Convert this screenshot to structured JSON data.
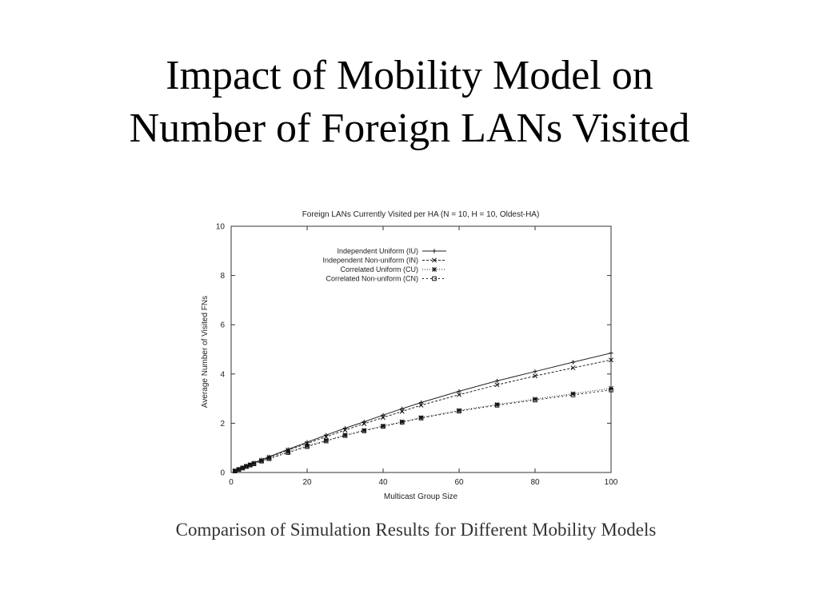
{
  "slide": {
    "title_line1": "Impact of Mobility Model on",
    "title_line2": "Number of Foreign LANs Visited",
    "caption": "Comparison of Simulation Results for Different Mobility Models"
  },
  "chart_data": {
    "type": "line",
    "title": "Foreign LANs Currently Visited per HA (N = 10, H = 10, Oldest-HA)",
    "xlabel": "Multicast Group Size",
    "ylabel": "Average Number of Visited FNs",
    "xlim": [
      0,
      100
    ],
    "ylim": [
      0,
      10
    ],
    "xticks": [
      0,
      20,
      40,
      60,
      80,
      100
    ],
    "yticks": [
      0,
      2,
      4,
      6,
      8,
      10
    ],
    "grid": false,
    "legend_position": "top-center",
    "x": [
      1,
      2,
      3,
      4,
      5,
      6,
      8,
      10,
      15,
      20,
      25,
      30,
      35,
      40,
      45,
      50,
      60,
      70,
      80,
      90,
      100
    ],
    "series": [
      {
        "name": "Independent Uniform (IU)",
        "marker": "+",
        "values": [
          0.07,
          0.14,
          0.2,
          0.27,
          0.33,
          0.39,
          0.52,
          0.64,
          0.94,
          1.23,
          1.52,
          1.8,
          2.06,
          2.33,
          2.59,
          2.84,
          3.3,
          3.72,
          4.1,
          4.48,
          4.85
        ]
      },
      {
        "name": "Independent Non-uniform (IN)",
        "marker": "x",
        "values": [
          0.07,
          0.13,
          0.19,
          0.26,
          0.32,
          0.38,
          0.5,
          0.62,
          0.91,
          1.18,
          1.45,
          1.72,
          1.98,
          2.23,
          2.48,
          2.73,
          3.16,
          3.56,
          3.92,
          4.25,
          4.57
        ]
      },
      {
        "name": "Correlated Uniform (CU)",
        "marker": "*",
        "values": [
          0.06,
          0.12,
          0.18,
          0.24,
          0.3,
          0.36,
          0.47,
          0.58,
          0.83,
          1.08,
          1.3,
          1.52,
          1.71,
          1.89,
          2.06,
          2.23,
          2.52,
          2.76,
          2.98,
          3.2,
          3.42
        ]
      },
      {
        "name": "Correlated Non-uniform (CN)",
        "marker": "square",
        "values": [
          0.06,
          0.12,
          0.18,
          0.24,
          0.3,
          0.35,
          0.46,
          0.56,
          0.81,
          1.05,
          1.28,
          1.5,
          1.69,
          1.87,
          2.04,
          2.21,
          2.49,
          2.73,
          2.94,
          3.15,
          3.35
        ]
      }
    ]
  }
}
